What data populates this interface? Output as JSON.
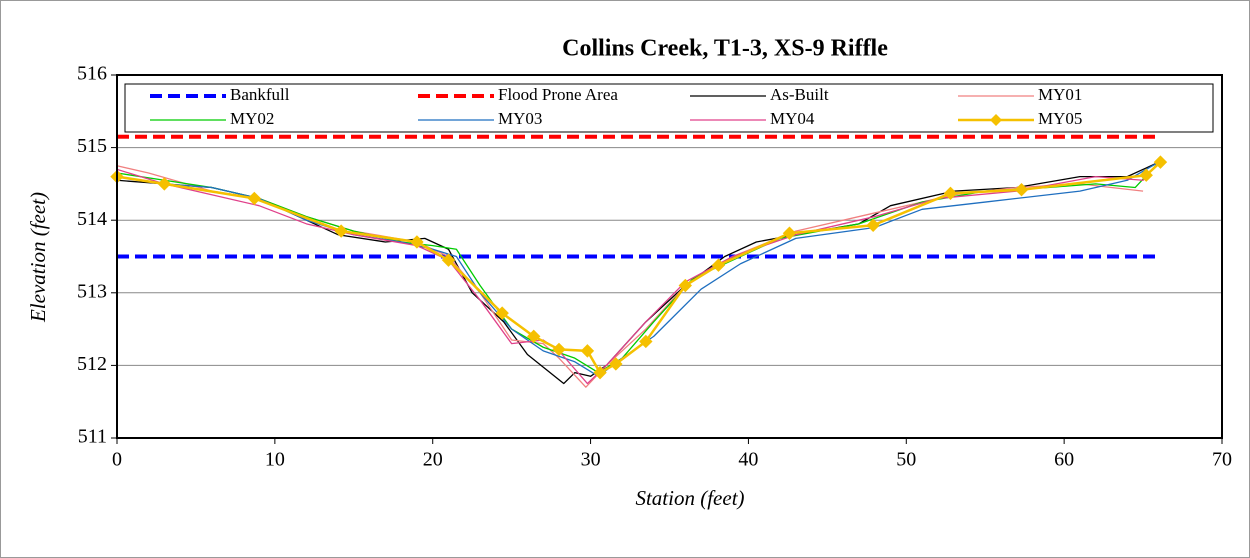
{
  "chart_data": {
    "type": "line",
    "title": "Collins Creek, T1-3, XS-9 Riffle",
    "x_label": "Station (feet)",
    "y_label": "Elevation (feet)",
    "xlim": [
      0,
      70
    ],
    "xticks": [
      0,
      10,
      20,
      30,
      40,
      50,
      60,
      70
    ],
    "ylim": [
      511,
      516
    ],
    "yticks": [
      511,
      512,
      513,
      514,
      515,
      516
    ],
    "grid": true,
    "series": [
      {
        "name": "Bankfull",
        "color": "#0000ff",
        "dashed": true,
        "x": [
          0,
          66
        ],
        "values": [
          513.5,
          513.5
        ]
      },
      {
        "name": "Flood Prone Area",
        "color": "#ff0000",
        "dashed": true,
        "x": [
          0,
          66
        ],
        "values": [
          515.15,
          515.15
        ]
      },
      {
        "name": "As-Built",
        "color": "#000000",
        "x": [
          0,
          3,
          6,
          9,
          12,
          14,
          17,
          19.5,
          21,
          22.5,
          24.5,
          26,
          28.3,
          29,
          30,
          31,
          33.5,
          36,
          38.5,
          40.5,
          43,
          47,
          49,
          53,
          57,
          61,
          64,
          66
        ],
        "values": [
          514.55,
          514.5,
          514.45,
          514.3,
          514.0,
          513.8,
          513.7,
          513.75,
          513.6,
          513.0,
          512.6,
          512.15,
          511.75,
          511.9,
          511.85,
          512.0,
          512.6,
          513.1,
          513.5,
          513.7,
          513.8,
          513.95,
          514.2,
          514.4,
          514.45,
          514.6,
          514.6,
          514.8
        ]
      },
      {
        "name": "MY01",
        "color": "#f08080",
        "x": [
          0,
          2,
          6,
          9,
          12,
          15,
          19,
          21,
          23,
          25,
          27,
          28,
          29.7,
          31,
          33.5,
          36,
          39,
          43,
          48,
          53,
          57,
          61,
          65
        ],
        "values": [
          514.75,
          514.65,
          514.4,
          514.3,
          514.05,
          513.85,
          513.7,
          513.5,
          513.0,
          512.35,
          512.3,
          512.1,
          511.7,
          512.0,
          512.5,
          513.1,
          513.5,
          513.85,
          514.1,
          514.35,
          514.45,
          514.5,
          514.4
        ]
      },
      {
        "name": "MY02",
        "color": "#00cc00",
        "x": [
          0,
          3,
          6,
          9,
          12,
          15,
          18,
          20,
          21.5,
          23,
          25,
          27,
          29,
          30.5,
          32,
          34,
          36.5,
          39,
          42,
          47,
          51,
          55,
          59,
          62,
          64.5,
          66
        ],
        "values": [
          514.65,
          514.55,
          514.45,
          514.3,
          514.05,
          513.85,
          513.7,
          513.65,
          513.6,
          513.1,
          512.5,
          512.25,
          512.1,
          511.9,
          512.1,
          512.6,
          513.2,
          513.45,
          513.75,
          513.95,
          514.25,
          514.4,
          514.45,
          514.5,
          514.45,
          514.8
        ]
      },
      {
        "name": "MY03",
        "color": "#1f6fc0",
        "x": [
          0,
          3,
          6,
          9,
          12,
          15,
          18,
          20,
          21.5,
          23,
          25,
          27,
          29,
          30.5,
          32,
          34,
          37,
          39.5,
          43,
          48,
          51,
          55,
          61,
          64,
          66
        ],
        "values": [
          514.6,
          514.5,
          514.45,
          514.3,
          514.0,
          513.8,
          513.7,
          513.6,
          513.5,
          513.0,
          512.5,
          512.2,
          512.05,
          511.85,
          512.1,
          512.4,
          513.05,
          513.4,
          513.75,
          513.9,
          514.15,
          514.25,
          514.4,
          514.55,
          514.8
        ]
      },
      {
        "name": "MY04",
        "color": "#e0408a",
        "x": [
          0,
          3,
          6,
          9,
          12,
          15,
          19,
          21,
          23,
          25,
          27,
          28,
          29.8,
          31,
          33.5,
          36,
          39,
          43,
          48,
          52,
          57,
          62,
          65,
          66
        ],
        "values": [
          514.7,
          514.5,
          514.35,
          514.2,
          513.95,
          513.8,
          513.65,
          513.45,
          512.9,
          512.3,
          512.35,
          512.2,
          511.75,
          512.0,
          512.6,
          513.15,
          513.5,
          513.8,
          514.05,
          514.3,
          514.4,
          514.6,
          514.55,
          514.8
        ]
      },
      {
        "name": "MY05",
        "color": "#f5c000",
        "marker": "diamond",
        "x": [
          0,
          3,
          8.7,
          14.2,
          19,
          21,
          24.4,
          26.4,
          28,
          29.8,
          30.6,
          31.6,
          33.5,
          36,
          38.1,
          42.6,
          47.9,
          52.8,
          57.3,
          65.2,
          66.1
        ],
        "values": [
          514.6,
          514.5,
          514.3,
          513.85,
          513.7,
          513.45,
          512.72,
          512.4,
          512.22,
          512.2,
          511.9,
          512.02,
          512.33,
          513.1,
          513.38,
          513.82,
          513.93,
          514.37,
          514.42,
          514.62,
          514.8
        ]
      }
    ]
  }
}
